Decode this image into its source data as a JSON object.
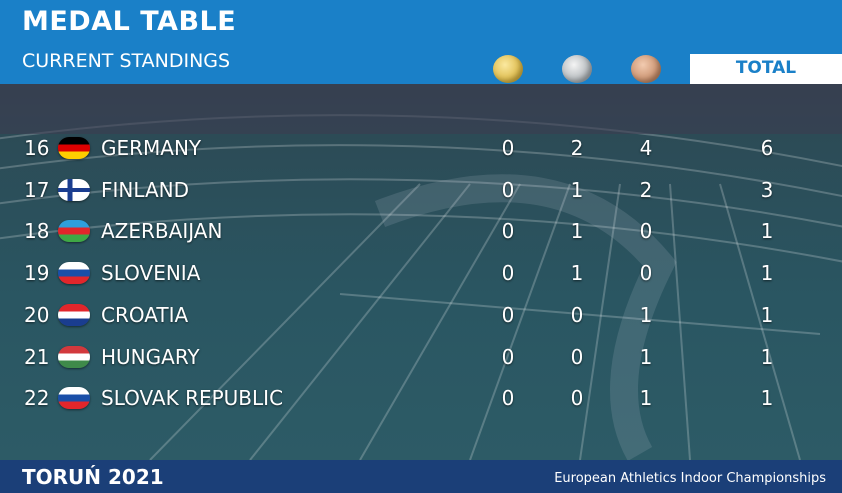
{
  "header": {
    "title": "MEDAL TABLE",
    "subtitle": "CURRENT STANDINGS",
    "total_label": "TOTAL"
  },
  "table": {
    "rows": [
      [
        16,
        "GERMANY",
        0,
        2,
        4,
        6
      ],
      [
        17,
        "FINLAND",
        0,
        1,
        2,
        3
      ],
      [
        18,
        "AZERBAIJAN",
        0,
        1,
        0,
        1
      ],
      [
        19,
        "SLOVENIA",
        0,
        1,
        0,
        1
      ],
      [
        20,
        "CROATIA",
        0,
        0,
        1,
        1
      ],
      [
        21,
        "HUNGARY",
        0,
        0,
        1,
        1
      ],
      [
        22,
        "SLOVAK REPUBLIC",
        0,
        0,
        1,
        1
      ]
    ]
  },
  "footer": {
    "left": "TORUŃ 2021",
    "right": "European Athletics Indoor Championships"
  }
}
